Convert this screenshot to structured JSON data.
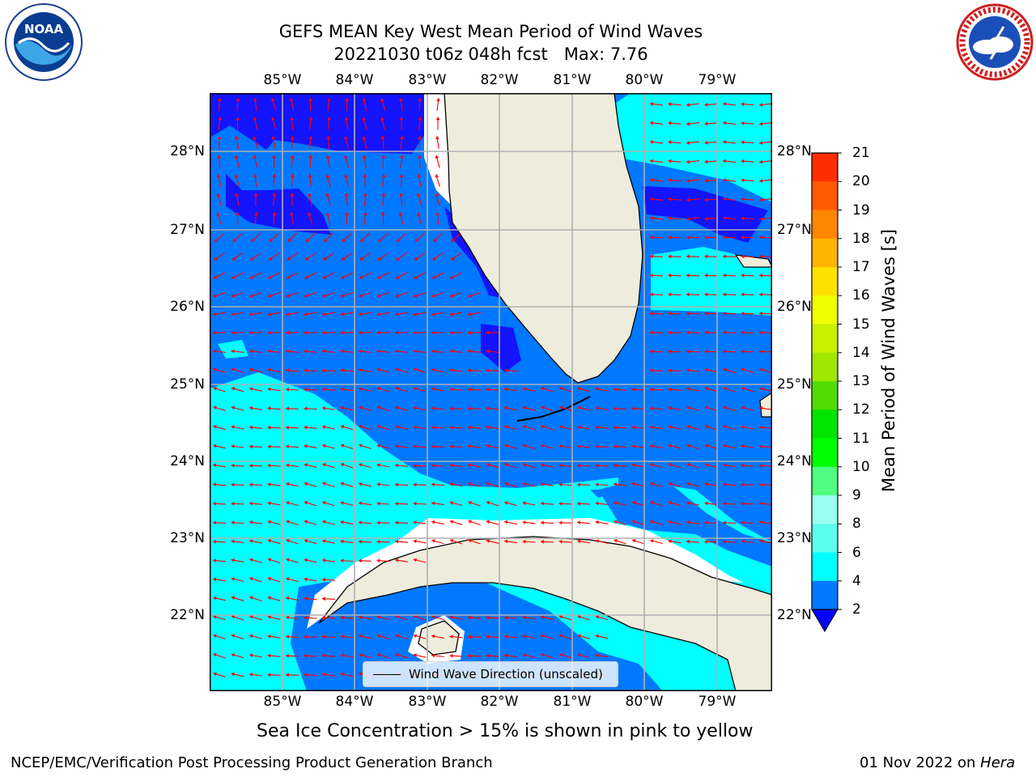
{
  "header": {
    "title_line1": "GEFS MEAN Key West Mean Period of Wind Waves",
    "title_line2": "20221030 t06z 048h fcst   Max: 7.76"
  },
  "logos": {
    "left": "noaa-logo",
    "right": "nws-logo"
  },
  "map": {
    "lon_ticks": [
      "85°W",
      "84°W",
      "83°W",
      "82°W",
      "81°W",
      "80°W",
      "79°W"
    ],
    "lat_ticks": [
      "28°N",
      "27°N",
      "26°N",
      "25°N",
      "24°N",
      "23°N",
      "22°N"
    ],
    "land_color": "#eeecdc",
    "grid_color": "#b0b0b0",
    "arrow_color": "#ff0000",
    "legend_label": "Wind Wave Direction (unscaled)"
  },
  "colorbar": {
    "title": "Mean Period of Wind Waves [s]",
    "labels": [
      "21",
      "20",
      "19",
      "18",
      "17",
      "16",
      "15",
      "14",
      "13",
      "12",
      "11",
      "10",
      "9",
      "8",
      "6",
      "4",
      "2"
    ],
    "colors": [
      "#ff0000",
      "#ff2d00",
      "#ff5a00",
      "#ff8700",
      "#ffb400",
      "#ffe100",
      "#f0ff00",
      "#c8f000",
      "#a0e600",
      "#50dc00",
      "#00e600",
      "#00ff00",
      "#50ff82",
      "#9bfff0",
      "#5afff0",
      "#00ffff",
      "#0078ff",
      "#0000ff"
    ]
  },
  "chart_data": {
    "type": "heatmap",
    "title": "GEFS MEAN Key West Mean Period of Wind Waves",
    "subtitle": "20221030 t06z 048h fcst   Max: 7.76",
    "lon_range": [
      -86.0,
      -78.3
    ],
    "lat_range": [
      21.0,
      28.8
    ],
    "colorbar_label": "Mean Period of Wind Waves [s]",
    "levels": [
      2,
      4,
      6,
      8,
      9,
      10,
      11,
      12,
      13,
      14,
      15,
      16,
      17,
      18,
      19,
      20,
      21
    ],
    "max": 7.76,
    "wind_wave_direction": "mostly toward west-southwest south of 26°N; toward north in northern Gulf",
    "regions": [
      {
        "label": "2-4 s",
        "area": "northern Gulf near 28°N, east of Cape Canaveral near 27.2°N"
      },
      {
        "label": "4-6 s",
        "area": "most of the eastern Gulf, Straits of Florida"
      },
      {
        "label": "6-8 s",
        "area": "southeastern Gulf, north of Cuba, Atlantic east of Florida"
      }
    ]
  },
  "footer": {
    "note": "Sea Ice Concentration > 15% is shown in pink to yellow",
    "left": "NCEP/EMC/Verification Post Processing Product Generation Branch",
    "right_date": "01 Nov 2022 on ",
    "right_machine": "Hera"
  }
}
